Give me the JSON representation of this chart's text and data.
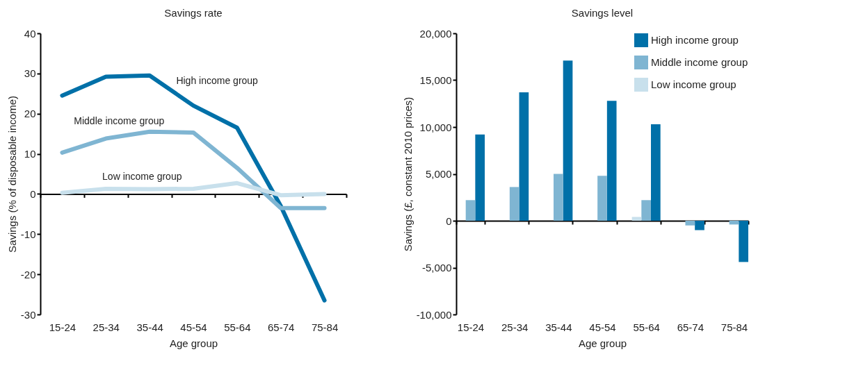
{
  "chart_data": [
    {
      "type": "line",
      "title": "Savings rate",
      "xlabel": "Age group",
      "ylabel": "Savings (% of disposable income)",
      "categories": [
        "15-24",
        "25-34",
        "35-44",
        "45-54",
        "55-64",
        "65-74",
        "75-84"
      ],
      "ylim": [
        -30,
        40
      ],
      "yticks": [
        -30,
        -20,
        -10,
        0,
        10,
        20,
        30,
        40
      ],
      "legend": false,
      "series": [
        {
          "name": "High income group",
          "color": "#0070a8",
          "values": [
            24.5,
            29.2,
            29.5,
            22,
            16.5,
            -3,
            -26.5
          ]
        },
        {
          "name": "Middle income group",
          "color": "#7fb5d2",
          "values": [
            10.3,
            13.8,
            15.5,
            15.3,
            6.5,
            -3.5,
            -3.5
          ]
        },
        {
          "name": "Low income group",
          "color": "#c8e0ec",
          "values": [
            0.3,
            1.3,
            1.2,
            1.3,
            2.7,
            -0.3,
            0
          ]
        }
      ]
    },
    {
      "type": "bar",
      "title": "Savings level",
      "xlabel": "Age group",
      "ylabel": "Savings (£, constant 2010 prices)",
      "categories": [
        "15-24",
        "25-34",
        "35-44",
        "45-54",
        "55-64",
        "65-74",
        "75-84"
      ],
      "ylim": [
        -10000,
        20000
      ],
      "yticks": [
        {
          "value": -10000,
          "label": "-10,000"
        },
        {
          "value": -5000,
          "label": "-5,000"
        },
        0,
        {
          "value": 5000,
          "label": "5,000"
        },
        {
          "value": 10000,
          "label": "10,000"
        },
        {
          "value": 15000,
          "label": "15,000"
        },
        {
          "value": 20000,
          "label": "20,000"
        }
      ],
      "legend": "top right",
      "series": [
        {
          "name": "High income group",
          "color": "#0070a8",
          "values": [
            9200,
            13700,
            17100,
            12800,
            10300,
            -1000,
            -4400
          ]
        },
        {
          "name": "Middle income group",
          "color": "#7fb5d2",
          "values": [
            2200,
            3600,
            5000,
            4800,
            2200,
            -500,
            -400
          ]
        },
        {
          "name": "Low income group",
          "color": "#c8e0ec",
          "values": [
            0,
            null,
            null,
            null,
            400,
            0,
            0
          ]
        }
      ]
    }
  ]
}
